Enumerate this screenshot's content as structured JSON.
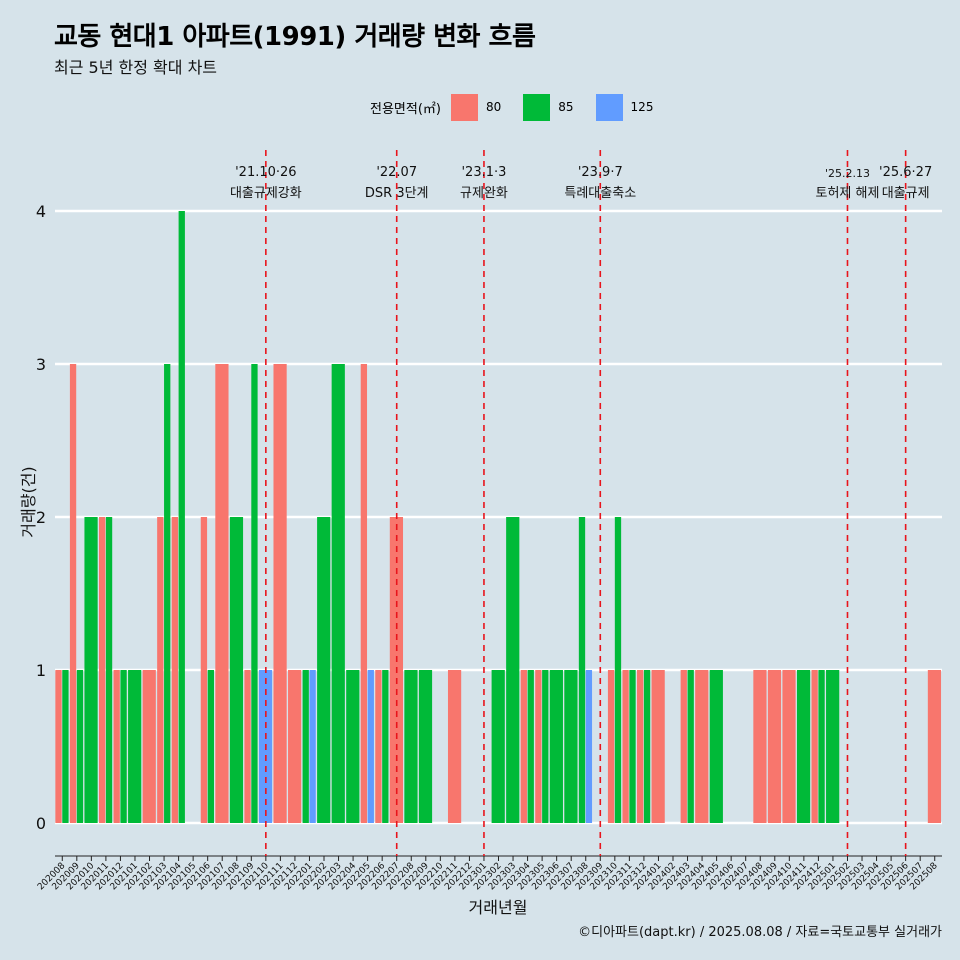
{
  "title": "교동 현대1 아파트(1991) 거래량 변화 흐름",
  "subtitle": "최근 5년 한정 확대 차트",
  "legend": {
    "title": "전용면적(㎡)",
    "items": [
      {
        "label": "80",
        "color": "#f8766d"
      },
      {
        "label": "85",
        "color": "#00ba38"
      },
      {
        "label": "125",
        "color": "#619cff"
      }
    ]
  },
  "footer": "©디아파트(dapt.kr) / 2025.08.08 / 자료=국토교통부 실거래가",
  "chart_data": {
    "type": "bar",
    "xlabel": "거래년월",
    "ylabel": "거래량(건)",
    "ylim": [
      0,
      4
    ],
    "yticks": [
      0,
      1,
      2,
      3,
      4
    ],
    "grid": true,
    "legend_position": "top",
    "categories": [
      "202008",
      "202009",
      "202010",
      "202011",
      "202012",
      "202101",
      "202102",
      "202103",
      "202104",
      "202105",
      "202106",
      "202107",
      "202108",
      "202109",
      "202110",
      "202111",
      "202112",
      "202201",
      "202202",
      "202203",
      "202204",
      "202205",
      "202206",
      "202207",
      "202208",
      "202209",
      "202210",
      "202211",
      "202212",
      "202301",
      "202302",
      "202303",
      "202304",
      "202305",
      "202306",
      "202307",
      "202308",
      "202309",
      "202310",
      "202311",
      "202312",
      "202401",
      "202402",
      "202403",
      "202404",
      "202405",
      "202406",
      "202407",
      "202408",
      "202409",
      "202410",
      "202411",
      "202412",
      "202501",
      "202502",
      "202503",
      "202504",
      "202505",
      "202506",
      "202507",
      "202508"
    ],
    "stacked": false,
    "series": [
      {
        "name": "80",
        "color": "#f8766d",
        "values": [
          1,
          3,
          0,
          2,
          1,
          0,
          1,
          2,
          2,
          0,
          2,
          3,
          0,
          1,
          0,
          3,
          1,
          0,
          0,
          0,
          0,
          3,
          1,
          2,
          0,
          0,
          0,
          1,
          0,
          0,
          0,
          0,
          1,
          1,
          0,
          0,
          0,
          0,
          1,
          1,
          1,
          1,
          0,
          1,
          1,
          0,
          0,
          0,
          1,
          1,
          1,
          0,
          1,
          0,
          0,
          0,
          0,
          0,
          0,
          0,
          1
        ]
      },
      {
        "name": "85",
        "color": "#00ba38",
        "values": [
          1,
          1,
          2,
          2,
          1,
          1,
          0,
          3,
          4,
          0,
          1,
          0,
          2,
          3,
          0,
          0,
          0,
          1,
          2,
          3,
          1,
          0,
          1,
          0,
          1,
          1,
          0,
          0,
          0,
          0,
          1,
          2,
          1,
          1,
          1,
          1,
          2,
          0,
          2,
          1,
          1,
          0,
          0,
          1,
          0,
          1,
          0,
          0,
          0,
          0,
          0,
          1,
          1,
          1,
          0,
          0,
          0,
          0,
          0,
          0,
          0
        ]
      },
      {
        "name": "125",
        "color": "#619cff",
        "values": [
          0,
          0,
          0,
          0,
          0,
          0,
          0,
          0,
          0,
          0,
          0,
          0,
          0,
          0,
          1,
          0,
          0,
          1,
          0,
          0,
          0,
          1,
          0,
          0,
          0,
          0,
          0,
          0,
          0,
          0,
          0,
          0,
          0,
          0,
          0,
          0,
          1,
          0,
          0,
          0,
          0,
          0,
          0,
          0,
          0,
          0,
          0,
          0,
          0,
          0,
          0,
          0,
          0,
          0,
          0,
          0,
          0,
          0,
          0,
          0,
          0
        ]
      }
    ],
    "annotations": [
      {
        "x": "202110",
        "date": "'21.10·26",
        "text": "대출규제강화"
      },
      {
        "x": "202207",
        "date": "'22.07",
        "text": "DSR 3단계"
      },
      {
        "x": "202301",
        "date": "'23.1·3",
        "text": "규제완화"
      },
      {
        "x": "202309",
        "date": "'23.9·7",
        "text": "특례대출축소"
      },
      {
        "x": "202502",
        "date": "'25.2.13",
        "text": "토허제 해제"
      },
      {
        "x": "202506",
        "date": "'25.6·27",
        "text": "대출규제"
      }
    ]
  }
}
